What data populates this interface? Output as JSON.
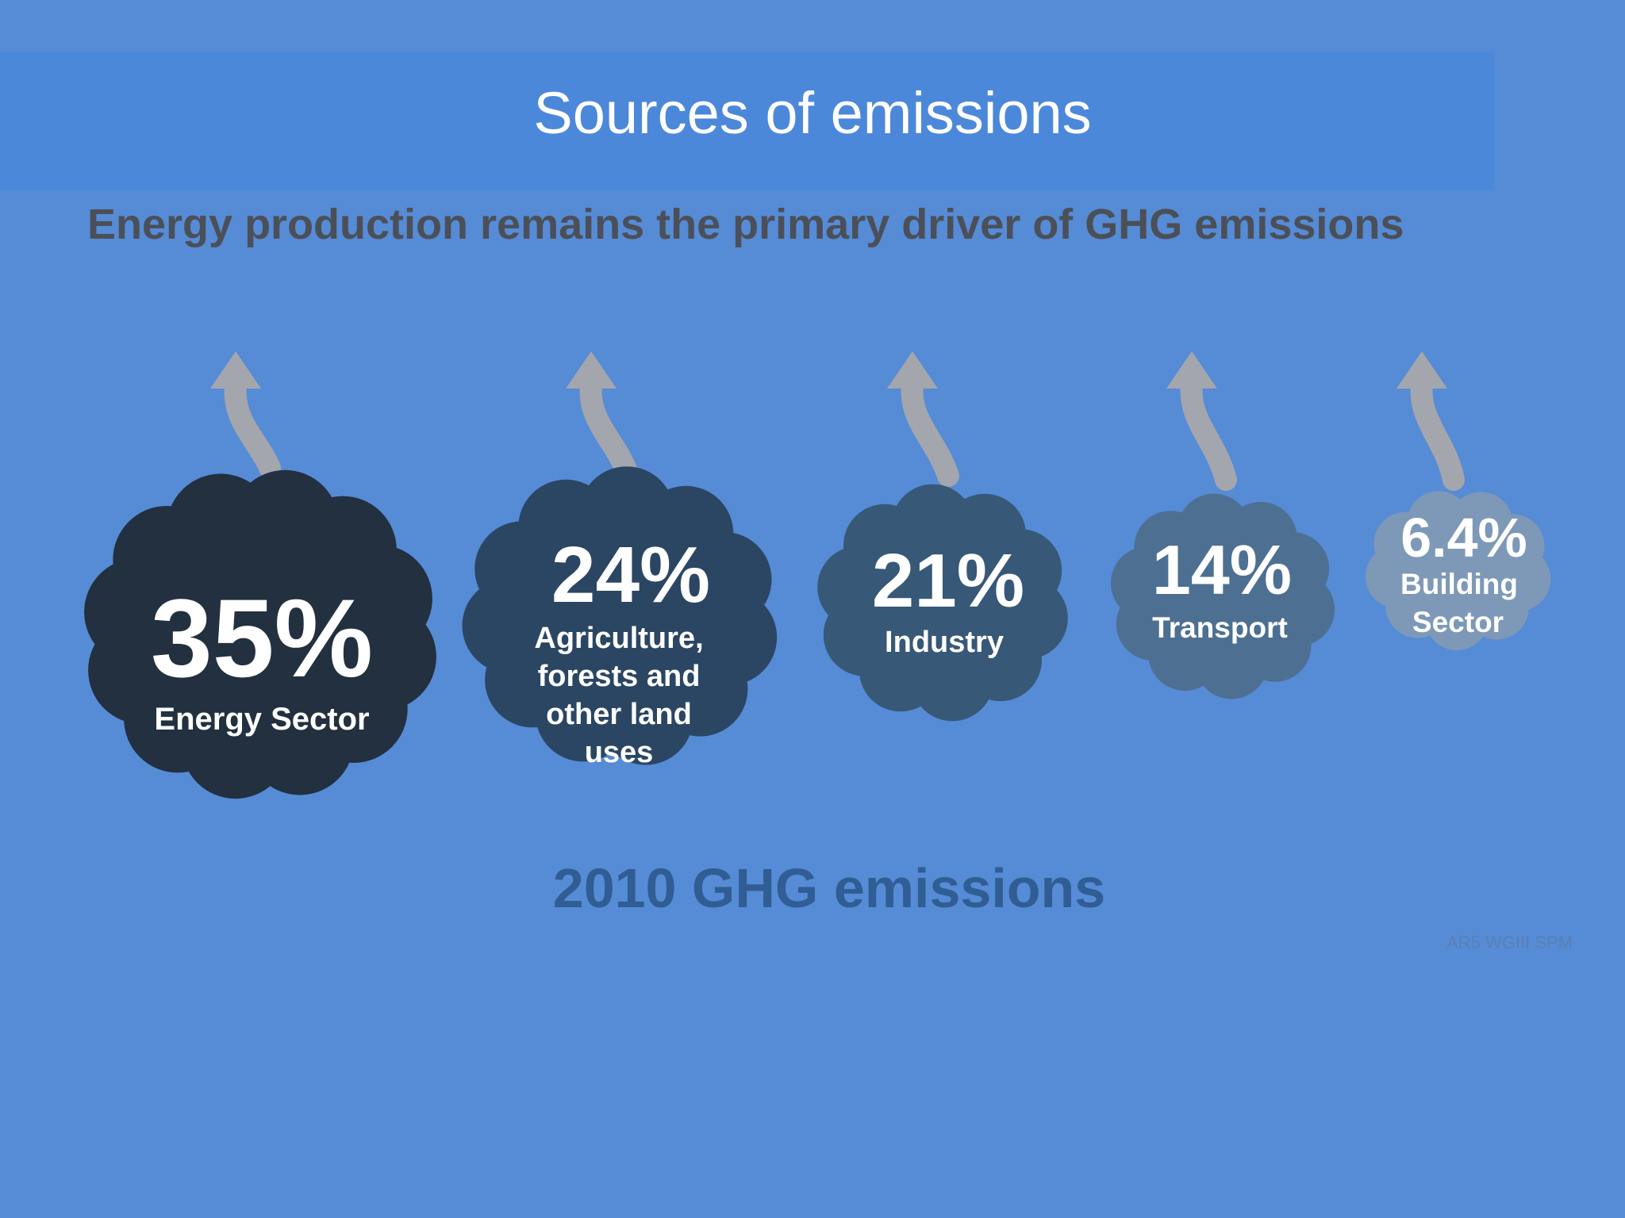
{
  "title": "Sources of emissions",
  "subtitle": "Energy production remains the primary driver of GHG emissions",
  "footer": "2010 GHG emissions",
  "source": "AR5 WGIII SPM",
  "colors": {
    "background": "#568bd6",
    "title_band": "#4c88da",
    "arrow": "#a3a6ad"
  },
  "sectors": [
    {
      "value": "35%",
      "label": "Energy Sector",
      "color": "#22303f"
    },
    {
      "value": "24%",
      "label": "Agriculture, forests and other land uses",
      "color": "#2b4663"
    },
    {
      "value": "21%",
      "label": "Industry",
      "color": "#375877"
    },
    {
      "value": "14%",
      "label": "Transport",
      "color": "#4d7092"
    },
    {
      "value": "6.4%",
      "label": "Building Sector",
      "color": "#7d99b7"
    }
  ]
}
